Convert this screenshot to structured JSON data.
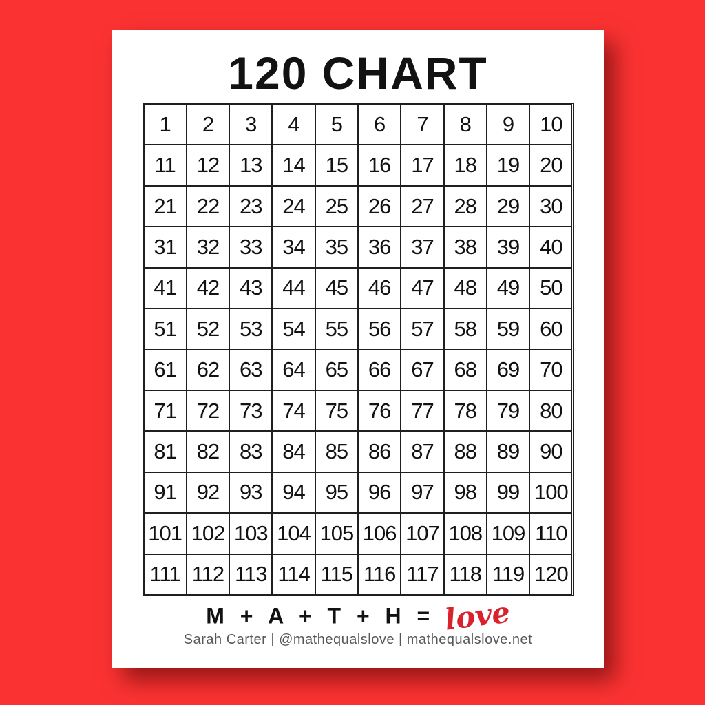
{
  "title": "120 CHART",
  "grid": {
    "rows": 12,
    "cols": 10,
    "numbers": [
      1,
      2,
      3,
      4,
      5,
      6,
      7,
      8,
      9,
      10,
      11,
      12,
      13,
      14,
      15,
      16,
      17,
      18,
      19,
      20,
      21,
      22,
      23,
      24,
      25,
      26,
      27,
      28,
      29,
      30,
      31,
      32,
      33,
      34,
      35,
      36,
      37,
      38,
      39,
      40,
      41,
      42,
      43,
      44,
      45,
      46,
      47,
      48,
      49,
      50,
      51,
      52,
      53,
      54,
      55,
      56,
      57,
      58,
      59,
      60,
      61,
      62,
      63,
      64,
      65,
      66,
      67,
      68,
      69,
      70,
      71,
      72,
      73,
      74,
      75,
      76,
      77,
      78,
      79,
      80,
      81,
      82,
      83,
      84,
      85,
      86,
      87,
      88,
      89,
      90,
      91,
      92,
      93,
      94,
      95,
      96,
      97,
      98,
      99,
      100,
      101,
      102,
      103,
      104,
      105,
      106,
      107,
      108,
      109,
      110,
      111,
      112,
      113,
      114,
      115,
      116,
      117,
      118,
      119,
      120
    ]
  },
  "footer": {
    "equation_prefix": "M + A + T + H =",
    "equation_script": "love",
    "credit": "Sarah Carter | @mathequalslove | mathequalslove.net"
  },
  "colors": {
    "background_red": "#fb3232",
    "grid_line": "#1f1f1f",
    "number_ink": "#121212",
    "love_script_red": "#d8232e",
    "credit_gray": "#56575b"
  }
}
